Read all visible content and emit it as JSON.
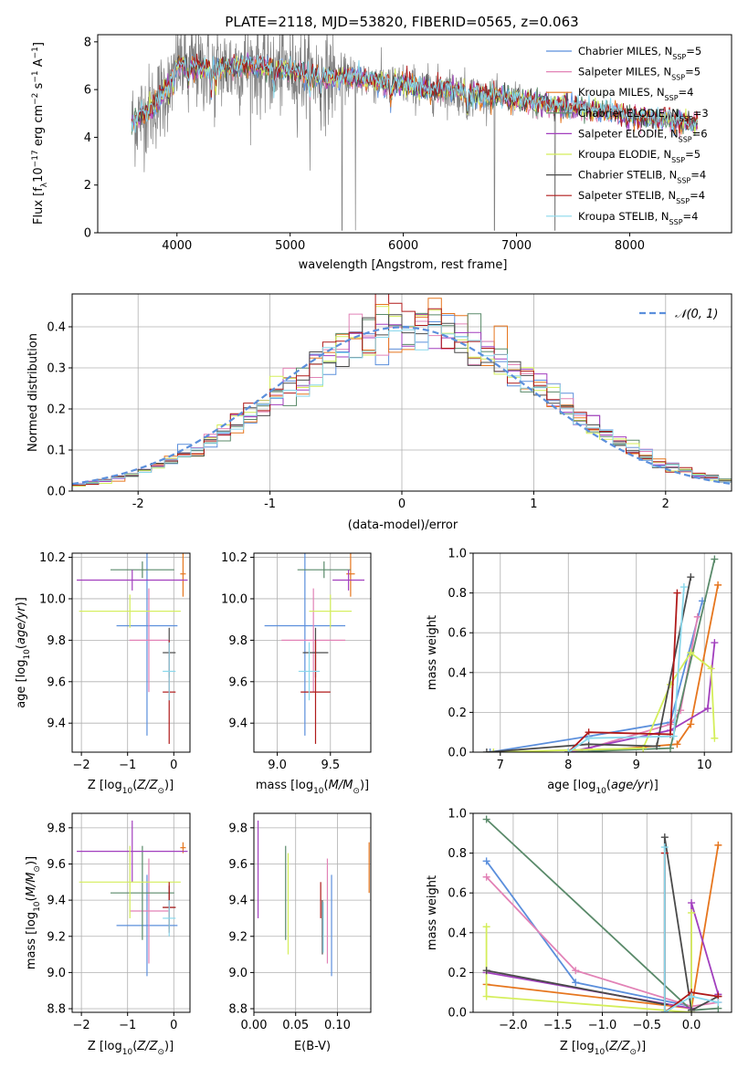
{
  "figure": {
    "title": "PLATE=2118, MJD=53820, FIBERID=0565, z=0.063"
  },
  "colors": {
    "data": "#808080",
    "Chabrier MILES": "#5b8fdc",
    "Salpeter MILES": "#e282b6",
    "Kroupa MILES": "#e6761e",
    "Chabrier ELODIE": "#5a8a6a",
    "Salpeter ELODIE": "#a23fbe",
    "Kroupa ELODIE": "#d4ee5a",
    "Chabrier STELIB": "#4a4a4a",
    "Salpeter STELIB": "#b01a1a",
    "Kroupa STELIB": "#8ad8ec",
    "normal": "#5b8fdc"
  },
  "chart_data": [
    {
      "id": "spectrum",
      "type": "line",
      "title": "PLATE=2118, MJD=53820, FIBERID=0565, z=0.063",
      "xlabel": "wavelength [Angstrom, rest frame]",
      "ylabel": "Flux [f_λ 10^-17 erg cm^-2 s^-1 A^-1]",
      "xlim": [
        3300,
        8900
      ],
      "ylim": [
        0,
        8.3
      ],
      "xticks": [
        4000,
        5000,
        6000,
        7000,
        8000
      ],
      "yticks": [
        0,
        2,
        4,
        6,
        8
      ],
      "continuum": {
        "x": [
          3600,
          3700,
          3800,
          3900,
          4000,
          4200,
          4400,
          4600,
          4800,
          5000,
          5200,
          5400,
          5600,
          5800,
          6000,
          6200,
          6400,
          6600,
          6800,
          7000,
          7200,
          7400,
          7600,
          7800,
          8000,
          8200,
          8400,
          8600
        ],
        "y": [
          4.6,
          5.0,
          5.3,
          6.0,
          7.1,
          6.9,
          6.9,
          7.0,
          6.9,
          6.8,
          6.6,
          6.5,
          6.5,
          6.3,
          6.2,
          6.0,
          6.0,
          5.8,
          5.7,
          5.6,
          5.4,
          5.3,
          5.2,
          5.1,
          4.9,
          4.8,
          4.7,
          4.6
        ]
      },
      "legend_position": "upper right",
      "series": [
        {
          "name": "Chabrier MILES, N_SSP=5",
          "label_base": "Chabrier MILES, N",
          "label_sub": "SSP",
          "label_val": "=5"
        },
        {
          "name": "Salpeter MILES, N_SSP=5",
          "label_base": "Salpeter MILES, N",
          "label_sub": "SSP",
          "label_val": "=5"
        },
        {
          "name": "Kroupa MILES, N_SSP=4",
          "label_base": "Kroupa MILES, N",
          "label_sub": "SSP",
          "label_val": "=4"
        },
        {
          "name": "Chabrier ELODIE, N_SSP=3",
          "label_base": "Chabrier ELODIE, N",
          "label_sub": "SSP",
          "label_val": "=3"
        },
        {
          "name": "Salpeter ELODIE, N_SSP=6",
          "label_base": "Salpeter ELODIE, N",
          "label_sub": "SSP",
          "label_val": "=6"
        },
        {
          "name": "Kroupa ELODIE, N_SSP=5",
          "label_base": "Kroupa ELODIE, N",
          "label_sub": "SSP",
          "label_val": "=5"
        },
        {
          "name": "Chabrier STELIB, N_SSP=4",
          "label_base": "Chabrier STELIB, N",
          "label_sub": "SSP",
          "label_val": "=4"
        },
        {
          "name": "Salpeter STELIB, N_SSP=4",
          "label_base": "Salpeter STELIB, N",
          "label_sub": "SSP",
          "label_val": "=4"
        },
        {
          "name": "Kroupa STELIB, N_SSP=4",
          "label_base": "Kroupa STELIB, N",
          "label_sub": "SSP",
          "label_val": "=4"
        }
      ]
    },
    {
      "id": "residuals",
      "type": "line",
      "xlabel": "(data-model)/error",
      "ylabel": "Normed distribution",
      "xlim": [
        -2.5,
        2.5
      ],
      "ylim": [
        0,
        0.48
      ],
      "xticks": [
        -2,
        -1,
        0,
        1,
        2
      ],
      "yticks": [
        0.0,
        0.1,
        0.2,
        0.3,
        0.4
      ],
      "grid": true,
      "bins": 50,
      "legend": "N(0,1)",
      "legend_position": "upper right"
    },
    {
      "id": "age_vs_Z",
      "type": "scatter",
      "xlabel": "Z [log10(Z/Z⊙)]",
      "ylabel": "age [log10(age/yr)]",
      "xlim": [
        -2.2,
        0.35
      ],
      "ylim": [
        9.26,
        10.22
      ],
      "xticks": [
        -2,
        -1,
        0
      ],
      "yticks": [
        9.4,
        9.6,
        9.8,
        10.0,
        10.2
      ],
      "grid": true,
      "points": [
        {
          "model": "Chabrier MILES",
          "x": -0.58,
          "xerr": 0.66,
          "y": 9.87,
          "yerr": 0.53
        },
        {
          "model": "Salpeter MILES",
          "x": -0.54,
          "xerr": 0.42,
          "y": 9.8,
          "yerr": 0.25
        },
        {
          "model": "Kroupa MILES",
          "x": 0.2,
          "xerr": 0.06,
          "y": 10.12,
          "yerr": 0.11
        },
        {
          "model": "Chabrier ELODIE",
          "x": -0.68,
          "xerr": 0.69,
          "y": 10.14,
          "yerr": 0.04
        },
        {
          "model": "Salpeter ELODIE",
          "x": -0.9,
          "xerr": 1.2,
          "y": 10.09,
          "yerr": 0.05
        },
        {
          "model": "Kroupa ELODIE",
          "x": -0.95,
          "xerr": 1.1,
          "y": 9.94,
          "yerr": 0.08
        },
        {
          "model": "Chabrier STELIB",
          "x": -0.1,
          "xerr": 0.14,
          "y": 9.74,
          "yerr": 0.12
        },
        {
          "model": "Salpeter STELIB",
          "x": -0.1,
          "xerr": 0.14,
          "y": 9.55,
          "yerr": 0.25
        },
        {
          "model": "Kroupa STELIB",
          "x": -0.1,
          "xerr": 0.14,
          "y": 9.65,
          "yerr": 0.14
        }
      ]
    },
    {
      "id": "age_vs_mass",
      "type": "scatter",
      "xlabel": "mass [log10(M/M⊙)]",
      "ylabel": "",
      "xlim": [
        8.78,
        9.88
      ],
      "ylim": [
        9.26,
        10.22
      ],
      "xticks": [
        9.0,
        9.5
      ],
      "yticks": [
        9.4,
        9.6,
        9.8,
        10.0,
        10.2
      ],
      "grid": true,
      "points": [
        {
          "model": "Chabrier MILES",
          "x": 9.26,
          "xerr": 0.38,
          "y": 9.87,
          "yerr": 0.53
        },
        {
          "model": "Salpeter MILES",
          "x": 9.34,
          "xerr": 0.3,
          "y": 9.8,
          "yerr": 0.25
        },
        {
          "model": "Kroupa MILES",
          "x": 9.69,
          "xerr": 0.04,
          "y": 10.12,
          "yerr": 0.11
        },
        {
          "model": "Chabrier ELODIE",
          "x": 9.44,
          "xerr": 0.25,
          "y": 10.14,
          "yerr": 0.04
        },
        {
          "model": "Salpeter ELODIE",
          "x": 9.67,
          "xerr": 0.15,
          "y": 10.09,
          "yerr": 0.05
        },
        {
          "model": "Kroupa ELODIE",
          "x": 9.5,
          "xerr": 0.2,
          "y": 9.94,
          "yerr": 0.08
        },
        {
          "model": "Chabrier STELIB",
          "x": 9.36,
          "xerr": 0.12,
          "y": 9.74,
          "yerr": 0.12
        },
        {
          "model": "Salpeter STELIB",
          "x": 9.36,
          "xerr": 0.14,
          "y": 9.55,
          "yerr": 0.25
        },
        {
          "model": "Kroupa STELIB",
          "x": 9.3,
          "xerr": 0.1,
          "y": 9.65,
          "yerr": 0.14
        }
      ]
    },
    {
      "id": "weight_vs_age",
      "type": "line",
      "xlabel": "age [log10(age/yr)]",
      "ylabel": "mass weight",
      "xlim": [
        6.6,
        10.4
      ],
      "ylim": [
        0,
        1.0
      ],
      "xticks": [
        7,
        8,
        9,
        10
      ],
      "yticks": [
        0.0,
        0.2,
        0.4,
        0.6,
        0.8,
        1.0
      ],
      "grid": true,
      "series": [
        {
          "model": "Chabrier MILES",
          "x": [
            6.85,
            8.3,
            9.5,
            9.97
          ],
          "y": [
            0.0,
            0.08,
            0.15,
            0.76
          ]
        },
        {
          "model": "Salpeter MILES",
          "x": [
            8.1,
            8.3,
            9.5,
            9.65,
            9.9
          ],
          "y": [
            0.0,
            0.02,
            0.14,
            0.21,
            0.68
          ]
        },
        {
          "model": "Kroupa MILES",
          "x": [
            8.2,
            9.6,
            9.8,
            10.2
          ],
          "y": [
            0.0,
            0.04,
            0.14,
            0.84
          ]
        },
        {
          "model": "Chabrier ELODIE",
          "x": [
            8.0,
            9.5,
            10.15
          ],
          "y": [
            0.0,
            0.02,
            0.97
          ]
        },
        {
          "model": "Salpeter ELODIE",
          "x": [
            8.0,
            9.5,
            10.05,
            10.15
          ],
          "y": [
            0.0,
            0.11,
            0.22,
            0.55
          ]
        },
        {
          "model": "Kroupa ELODIE",
          "x": [
            6.9,
            9.1,
            9.5,
            9.8,
            10.1,
            10.15
          ],
          "y": [
            0.0,
            0.02,
            0.34,
            0.5,
            0.42,
            0.07
          ]
        },
        {
          "model": "Chabrier STELIB",
          "x": [
            6.8,
            8.3,
            9.3,
            9.8
          ],
          "y": [
            0.0,
            0.04,
            0.03,
            0.88
          ]
        },
        {
          "model": "Salpeter STELIB",
          "x": [
            8.0,
            8.3,
            9.5,
            9.6
          ],
          "y": [
            0.0,
            0.1,
            0.09,
            0.8
          ]
        },
        {
          "model": "Kroupa STELIB",
          "x": [
            8.0,
            8.3,
            9.55,
            9.7
          ],
          "y": [
            0.0,
            0.07,
            0.08,
            0.83
          ]
        }
      ]
    },
    {
      "id": "mass_vs_Z",
      "type": "scatter",
      "xlabel": "Z [log10(Z/Z⊙)]",
      "ylabel": "mass [log10(M/M⊙)]",
      "xlim": [
        -2.2,
        0.35
      ],
      "ylim": [
        8.78,
        9.88
      ],
      "xticks": [
        -2,
        -1,
        0
      ],
      "yticks": [
        8.8,
        9.0,
        9.2,
        9.4,
        9.6,
        9.8
      ],
      "grid": true,
      "points": [
        {
          "model": "Chabrier MILES",
          "x": -0.58,
          "xerr": 0.66,
          "y": 9.26,
          "yerr": 0.28
        },
        {
          "model": "Salpeter MILES",
          "x": -0.54,
          "xerr": 0.42,
          "y": 9.34,
          "yerr": 0.29
        },
        {
          "model": "Kroupa MILES",
          "x": 0.2,
          "xerr": 0.06,
          "y": 9.69,
          "yerr": 0.03
        },
        {
          "model": "Chabrier ELODIE",
          "x": -0.68,
          "xerr": 0.69,
          "y": 9.44,
          "yerr": 0.26
        },
        {
          "model": "Salpeter ELODIE",
          "x": -0.9,
          "xerr": 1.2,
          "y": 9.67,
          "yerr": 0.17
        },
        {
          "model": "Kroupa ELODIE",
          "x": -0.95,
          "xerr": 1.1,
          "y": 9.5,
          "yerr": 0.2
        },
        {
          "model": "Chabrier STELIB",
          "x": -0.1,
          "xerr": 0.14,
          "y": 9.36,
          "yerr": 0.12
        },
        {
          "model": "Salpeter STELIB",
          "x": -0.1,
          "xerr": 0.14,
          "y": 9.36,
          "yerr": 0.14
        },
        {
          "model": "Kroupa STELIB",
          "x": -0.1,
          "xerr": 0.14,
          "y": 9.3,
          "yerr": 0.1
        }
      ]
    },
    {
      "id": "mass_vs_ebv",
      "type": "scatter",
      "xlabel": "E(B-V)",
      "ylabel": "",
      "xlim": [
        0.0,
        0.14
      ],
      "ylim": [
        8.78,
        9.88
      ],
      "xticks": [
        0.0,
        0.05,
        0.1
      ],
      "yticks": [
        8.8,
        9.0,
        9.2,
        9.4,
        9.6,
        9.8
      ],
      "grid": true,
      "points": [
        {
          "model": "Chabrier MILES",
          "x": 0.093,
          "xerr": 0.0,
          "y": 9.26,
          "yerr": 0.28
        },
        {
          "model": "Salpeter MILES",
          "x": 0.088,
          "xerr": 0.0,
          "y": 9.34,
          "yerr": 0.29
        },
        {
          "model": "Kroupa MILES",
          "x": 0.138,
          "xerr": 0.0,
          "y": 9.58,
          "yerr": 0.14
        },
        {
          "model": "Chabrier ELODIE",
          "x": 0.038,
          "xerr": 0.0,
          "y": 9.44,
          "yerr": 0.26
        },
        {
          "model": "Salpeter ELODIE",
          "x": 0.005,
          "xerr": 0.0,
          "y": 9.57,
          "yerr": 0.27
        },
        {
          "model": "Kroupa ELODIE",
          "x": 0.041,
          "xerr": 0.0,
          "y": 9.38,
          "yerr": 0.28
        },
        {
          "model": "Chabrier STELIB",
          "x": 0.082,
          "xerr": 0.0,
          "y": 9.25,
          "yerr": 0.15
        },
        {
          "model": "Salpeter STELIB",
          "x": 0.08,
          "xerr": 0.0,
          "y": 9.4,
          "yerr": 0.1
        },
        {
          "model": "Kroupa STELIB",
          "x": 0.083,
          "xerr": 0.0,
          "y": 9.25,
          "yerr": 0.14
        }
      ]
    },
    {
      "id": "weight_vs_Z",
      "type": "line",
      "xlabel": "Z [log10(Z/Z⊙)]",
      "ylabel": "mass weight",
      "xlim": [
        -2.45,
        0.45
      ],
      "ylim": [
        0,
        1.0
      ],
      "xticks": [
        -2.0,
        -1.5,
        -1.0,
        -0.5,
        0.0
      ],
      "yticks": [
        0.0,
        0.2,
        0.4,
        0.6,
        0.8,
        1.0
      ],
      "grid": true,
      "series": [
        {
          "model": "Chabrier MILES",
          "x": [
            -2.3,
            -1.3,
            0.0
          ],
          "y": [
            0.76,
            0.15,
            0.03
          ]
        },
        {
          "model": "Salpeter MILES",
          "x": [
            -2.3,
            -1.3,
            0.0,
            0.3
          ],
          "y": [
            0.68,
            0.21,
            0.03,
            0.05
          ]
        },
        {
          "model": "Kroupa MILES",
          "x": [
            -2.3,
            0.0,
            0.3
          ],
          "y": [
            0.14,
            0.02,
            0.84
          ]
        },
        {
          "model": "Chabrier ELODIE",
          "x": [
            -2.3,
            0.0,
            0.3
          ],
          "y": [
            0.97,
            0.01,
            0.02
          ]
        },
        {
          "model": "Salpeter ELODIE",
          "x": [
            -2.3,
            0.0,
            0.0,
            0.3
          ],
          "y": [
            0.2,
            0.02,
            0.55,
            0.09
          ]
        },
        {
          "model": "Kroupa ELODIE",
          "x": [
            -2.3,
            -2.3,
            0.0,
            0.0
          ],
          "y": [
            0.43,
            0.08,
            0.0,
            0.5
          ]
        },
        {
          "model": "Chabrier STELIB",
          "x": [
            -2.3,
            -0.3,
            -0.3,
            0.0,
            0.3
          ],
          "y": [
            0.21,
            0.04,
            0.88,
            0.01,
            0.08
          ]
        },
        {
          "model": "Salpeter STELIB",
          "x": [
            -0.3,
            -0.3,
            0.0,
            0.3
          ],
          "y": [
            0.8,
            0.0,
            0.1,
            0.08
          ]
        },
        {
          "model": "Kroupa STELIB",
          "x": [
            -0.3,
            -0.3,
            0.0,
            0.3
          ],
          "y": [
            0.83,
            0.0,
            0.08,
            0.05
          ]
        }
      ]
    }
  ]
}
